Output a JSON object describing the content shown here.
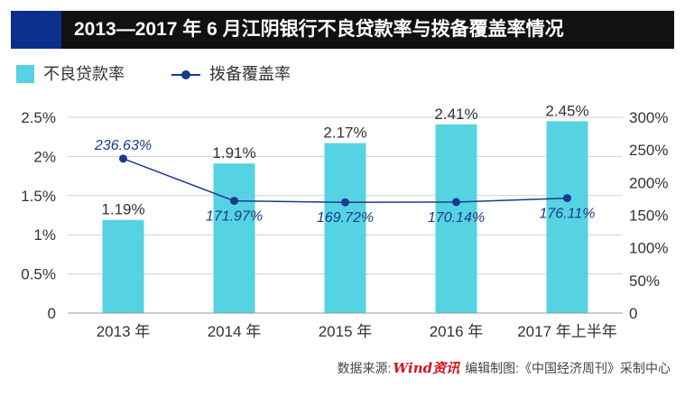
{
  "header": {
    "title": "2013—2017 年 6 月江阴银行不良贷款率与拨备覆盖率情况"
  },
  "colors": {
    "title_bg": "#111111",
    "title_accent": "#0b2f8c",
    "bar": "#56d3e2",
    "line": "#1b3a8c",
    "grid": "#d0d0d0"
  },
  "legend": {
    "bar_label": "不良贷款率",
    "line_label": "拨备覆盖率"
  },
  "chart_data": {
    "type": "bar",
    "title": "2013—2017 年 6 月江阴银行不良贷款率与拨备覆盖率情况",
    "categories": [
      "2013 年",
      "2014 年",
      "2015 年",
      "2016 年",
      "2017 年上半年"
    ],
    "series": [
      {
        "name": "不良贷款率",
        "type": "bar",
        "axis": "left",
        "values": [
          1.19,
          1.91,
          2.17,
          2.41,
          2.45
        ],
        "labels": [
          "1.19%",
          "1.91%",
          "2.17%",
          "2.41%",
          "2.45%"
        ]
      },
      {
        "name": "拨备覆盖率",
        "type": "line",
        "axis": "right",
        "values": [
          236.63,
          171.97,
          169.72,
          170.14,
          176.11
        ],
        "labels": [
          "236.63%",
          "171.97%",
          "169.72%",
          "170.14%",
          "176.11%"
        ]
      }
    ],
    "y_left": {
      "ylim": [
        0,
        2.5
      ],
      "ticks": [
        0,
        0.5,
        1,
        1.5,
        2,
        2.5
      ],
      "tick_labels": [
        "0",
        "0.5%",
        "1%",
        "1.5%",
        "2%",
        "2.5%"
      ]
    },
    "y_right": {
      "ylim": [
        0,
        300
      ],
      "ticks": [
        0,
        50,
        100,
        150,
        200,
        250,
        300
      ],
      "tick_labels": [
        "0",
        "50%",
        "100%",
        "150%",
        "200%",
        "250%",
        "300%"
      ]
    },
    "grid": true,
    "legend_position": "top-left"
  },
  "footer": {
    "source_prefix": "数据来源:",
    "source_logo": "Wind资讯",
    "credit": "编辑制图:《中国经济周刊》采制中心"
  }
}
